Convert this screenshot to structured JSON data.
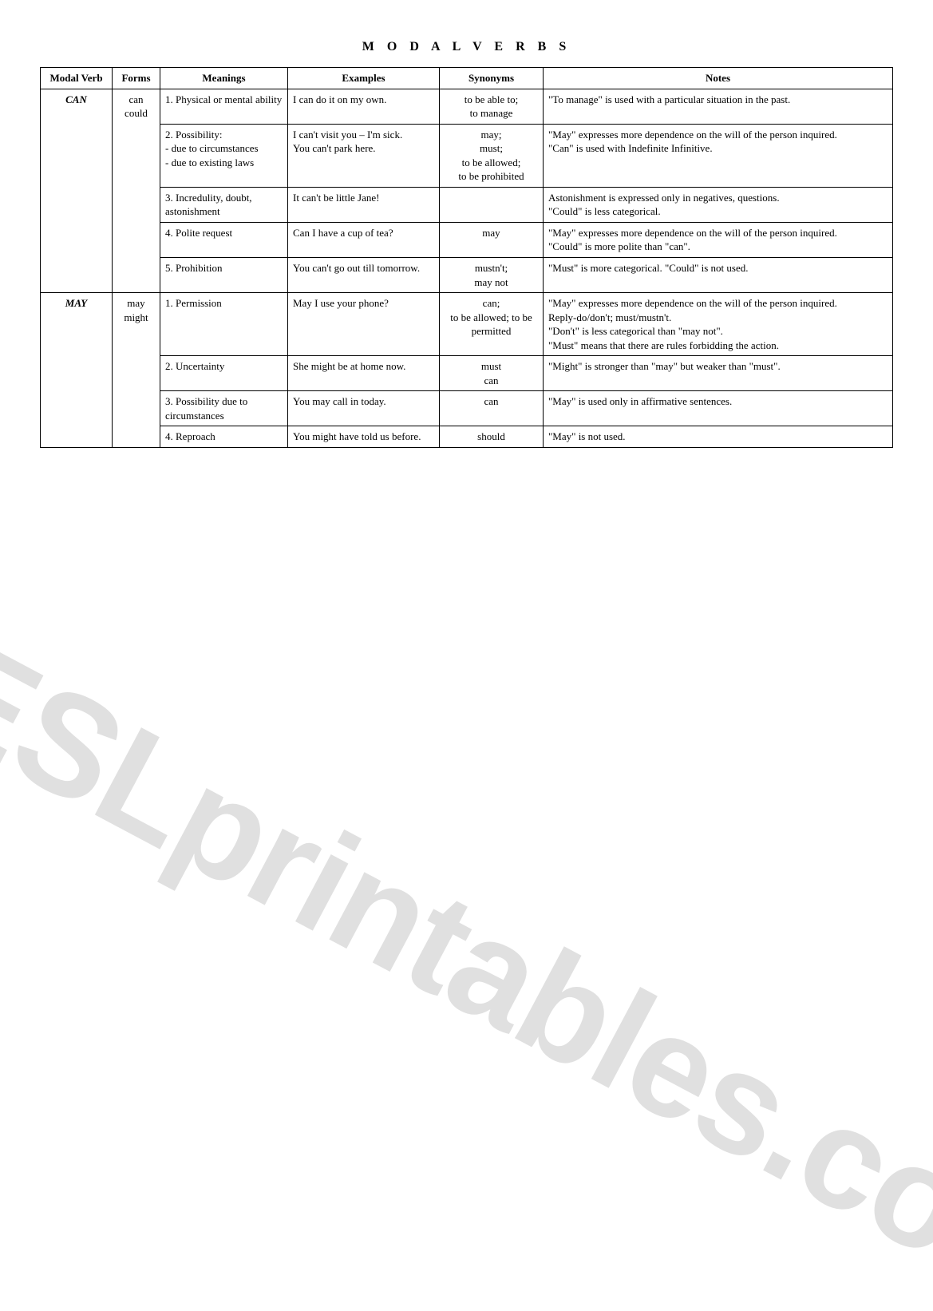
{
  "title": "M O D A L   V E R B S",
  "headers": {
    "modal": "Modal Verb",
    "forms": "Forms",
    "meanings": "Meanings",
    "examples": "Examples",
    "synonyms": "Synonyms",
    "notes": "Notes"
  },
  "watermark": "ESLprintables.com",
  "groups": [
    {
      "modal": "CAN",
      "forms": "can\ncould",
      "rows": [
        {
          "meaning": "1. Physical or mental ability",
          "example": "I can do it on my own.",
          "synonyms": "to be able to;\nto manage",
          "notes": "\"To manage\" is used with a        particular situation in the past."
        },
        {
          "meaning": "2. Possibility:\n- due to circumstances\n- due to existing laws",
          "example": "I can't visit you – I'm sick.\nYou can't park here.",
          "synonyms": "may;\nmust;\nto be allowed;\nto be prohibited",
          "notes": "\"May\" expresses more dependence on the will of the person inquired.\n\"Can\" is used with Indefinite Infinitive."
        },
        {
          "meaning": "3. Incredulity, doubt, astonishment",
          "example": "It can't be little Jane!",
          "synonyms": "",
          "notes": "Astonishment is expressed only in negatives, questions.\n\"Could\" is less categorical."
        },
        {
          "meaning": "4. Polite request",
          "example": "Can I have a cup of tea?",
          "synonyms": "may",
          "notes": "\"May\" expresses more dependence on the will of the person inquired.\n\"Could\" is more polite than \"can\"."
        },
        {
          "meaning": "5. Prohibition",
          "example": "You can't go out till tomorrow.",
          "synonyms": "mustn't;\nmay not",
          "notes": "\"Must\" is more categorical. \"Could\" is not used."
        }
      ]
    },
    {
      "modal": "MAY",
      "forms": "may\nmight",
      "rows": [
        {
          "meaning": "1. Permission",
          "example": "May I use your phone?",
          "synonyms": "can;\nto be allowed; to be permitted",
          "notes": "\"May\" expresses more dependence on the will of the person inquired.\nReply-do/don't;        must/mustn't.\n\"Don't\" is less categorical than \"may not\".\n\"Must\" means that there are      rules forbidding the action."
        },
        {
          "meaning": "2. Uncertainty",
          "example": "She might be at home now.",
          "synonyms": "must\ncan",
          "notes": "\"Might\" is stronger than \"may\" but weaker than \"must\"."
        },
        {
          "meaning": "3. Possibility due to circumstances",
          "example": "You may call in today.",
          "synonyms": "can",
          "notes": "\"May\" is used only in affirmative sentences."
        },
        {
          "meaning": "4. Reproach",
          "example": "You might have told us before.",
          "synonyms": "should",
          "notes": "\"May\" is not used."
        }
      ]
    }
  ]
}
